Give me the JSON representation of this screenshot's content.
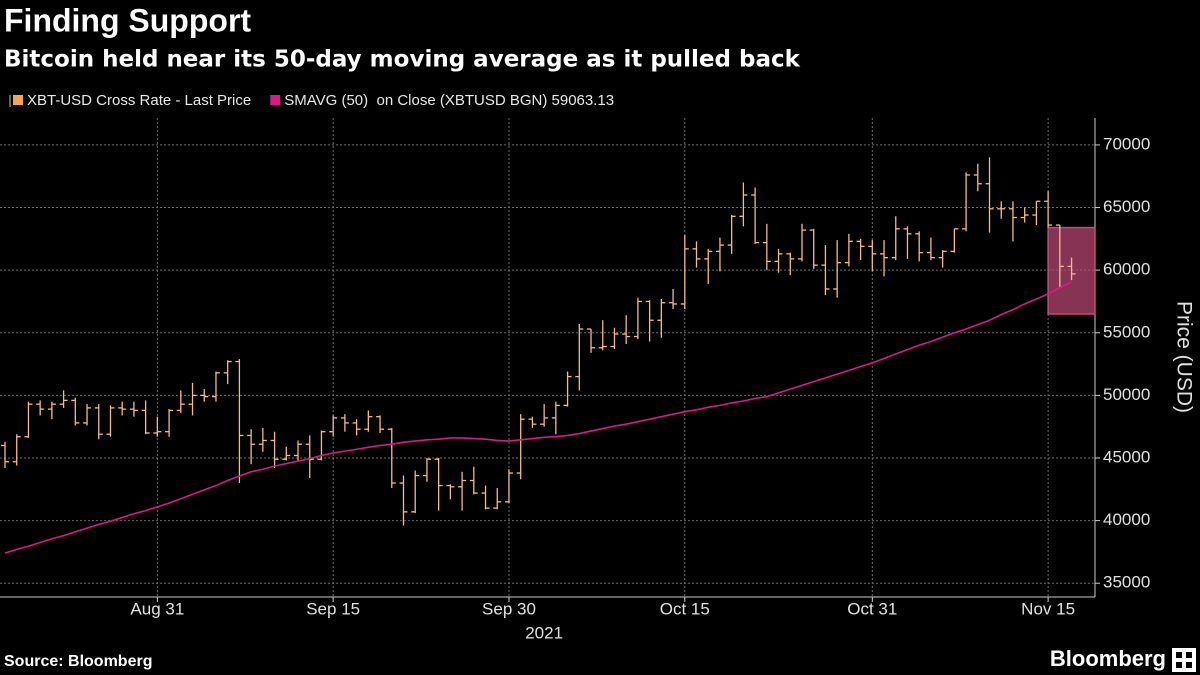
{
  "chart_data": {
    "type": "ohlc",
    "title": "Finding Support",
    "subtitle": "Bitcoin held near its 50-day moving average as it pulled back",
    "ylabel": "Price (USD)",
    "xlabel": "2021",
    "source": "Source: Bloomberg",
    "brand": "Bloomberg",
    "grid": true,
    "xlim": [
      "2021-08-18",
      "2021-11-19"
    ],
    "ylim": [
      33900,
      72150
    ],
    "yticks": [
      35000,
      40000,
      45000,
      50000,
      55000,
      60000,
      65000,
      70000
    ],
    "xticks": [
      {
        "value": "2021-08-31",
        "label": "Aug 31"
      },
      {
        "value": "2021-09-15",
        "label": "Sep 15"
      },
      {
        "value": "2021-09-30",
        "label": "Sep 30"
      },
      {
        "value": "2021-10-15",
        "label": "Oct 15"
      },
      {
        "value": "2021-10-31",
        "label": "Oct 31"
      },
      {
        "value": "2021-11-15",
        "label": "Nov 15"
      }
    ],
    "highlight": {
      "x": [
        "2021-11-15",
        "2021-11-19"
      ],
      "y": [
        56500,
        63400
      ],
      "color": "#c04a78"
    },
    "x": [
      "2021-08-18",
      "2021-08-19",
      "2021-08-20",
      "2021-08-21",
      "2021-08-22",
      "2021-08-23",
      "2021-08-24",
      "2021-08-25",
      "2021-08-26",
      "2021-08-27",
      "2021-08-28",
      "2021-08-29",
      "2021-08-30",
      "2021-08-31",
      "2021-09-01",
      "2021-09-02",
      "2021-09-03",
      "2021-09-04",
      "2021-09-05",
      "2021-09-06",
      "2021-09-07",
      "2021-09-08",
      "2021-09-09",
      "2021-09-10",
      "2021-09-11",
      "2021-09-12",
      "2021-09-13",
      "2021-09-14",
      "2021-09-15",
      "2021-09-16",
      "2021-09-17",
      "2021-09-18",
      "2021-09-19",
      "2021-09-20",
      "2021-09-21",
      "2021-09-22",
      "2021-09-23",
      "2021-09-24",
      "2021-09-25",
      "2021-09-26",
      "2021-09-27",
      "2021-09-28",
      "2021-09-29",
      "2021-09-30",
      "2021-10-01",
      "2021-10-02",
      "2021-10-03",
      "2021-10-04",
      "2021-10-05",
      "2021-10-06",
      "2021-10-07",
      "2021-10-08",
      "2021-10-09",
      "2021-10-10",
      "2021-10-11",
      "2021-10-12",
      "2021-10-13",
      "2021-10-14",
      "2021-10-15",
      "2021-10-16",
      "2021-10-17",
      "2021-10-18",
      "2021-10-19",
      "2021-10-20",
      "2021-10-21",
      "2021-10-22",
      "2021-10-23",
      "2021-10-24",
      "2021-10-25",
      "2021-10-26",
      "2021-10-27",
      "2021-10-28",
      "2021-10-29",
      "2021-10-30",
      "2021-10-31",
      "2021-11-01",
      "2021-11-02",
      "2021-11-03",
      "2021-11-04",
      "2021-11-05",
      "2021-11-06",
      "2021-11-07",
      "2021-11-08",
      "2021-11-09",
      "2021-11-10",
      "2021-11-11",
      "2021-11-12",
      "2021-11-13",
      "2021-11-14",
      "2021-11-15",
      "2021-11-16",
      "2021-11-17"
    ],
    "series": [
      {
        "name": "XBT-USD Cross Rate - Last Price",
        "color": "#f4b98c",
        "open": [
          46000,
          44700,
          46700,
          49300,
          48900,
          49300,
          49600,
          47800,
          49000,
          46900,
          49000,
          48900,
          48800,
          47000,
          47100,
          48800,
          49300,
          50000,
          49900,
          51800,
          52700,
          46800,
          46100,
          46400,
          44900,
          45200,
          46100,
          44900,
          47100,
          48200,
          47800,
          47300,
          48300,
          47300,
          43000,
          40700,
          43600,
          44900,
          42800,
          42700,
          43200,
          42200,
          41000,
          41500,
          43800,
          48100,
          47700,
          48200,
          49200,
          51500,
          55300,
          53800,
          53900,
          54900,
          54700,
          57500,
          56000,
          57400,
          57300,
          61700,
          60900,
          61500,
          62000,
          64300,
          66000,
          62200,
          60700,
          61300,
          60900,
          63200,
          60400,
          58500,
          60600,
          62300,
          61900,
          61300,
          61000,
          63300,
          62900,
          61400,
          61000,
          61500,
          63300,
          67600,
          66900,
          64900,
          64900,
          64200,
          64400,
          65500,
          63600,
          60300
        ],
        "high": [
          46300,
          46900,
          49500,
          49600,
          49500,
          50400,
          49800,
          49300,
          49300,
          49200,
          49500,
          49500,
          49600,
          48300,
          48900,
          50400,
          51000,
          50500,
          51900,
          52800,
          52900,
          47300,
          47400,
          47100,
          45900,
          46400,
          46800,
          47200,
          48400,
          48500,
          48100,
          48800,
          48400,
          47400,
          43600,
          44000,
          45000,
          45000,
          42900,
          43900,
          44300,
          42800,
          42600,
          44100,
          48500,
          48300,
          49300,
          49500,
          51900,
          55700,
          55300,
          56000,
          55400,
          56400,
          57800,
          57600,
          57700,
          58500,
          62800,
          62300,
          61700,
          62600,
          64400,
          67000,
          66600,
          63700,
          61700,
          61400,
          63700,
          63300,
          62000,
          62400,
          62900,
          62500,
          62400,
          62400,
          64300,
          63500,
          63100,
          62600,
          61600,
          63300,
          67800,
          68500,
          69000,
          65500,
          65500,
          65000,
          65500,
          66300,
          63600,
          61000
        ],
        "low": [
          44200,
          44400,
          46600,
          48400,
          48100,
          49000,
          47600,
          47600,
          46500,
          46700,
          48400,
          48300,
          46900,
          46700,
          46700,
          48600,
          48400,
          49500,
          49500,
          50900,
          43000,
          44500,
          45500,
          44200,
          44800,
          44800,
          43400,
          44800,
          46700,
          47100,
          46800,
          47100,
          47000,
          42600,
          39600,
          40600,
          43100,
          40800,
          41700,
          40800,
          42100,
          40900,
          40900,
          41400,
          43300,
          47400,
          47500,
          46900,
          49100,
          50400,
          53400,
          53600,
          53700,
          54100,
          54500,
          54300,
          54600,
          56900,
          56900,
          60200,
          58900,
          59900,
          61300,
          63500,
          62100,
          60000,
          59800,
          59600,
          60700,
          60100,
          58000,
          57800,
          60300,
          60800,
          59900,
          59500,
          60800,
          60900,
          60700,
          60800,
          60200,
          61400,
          63100,
          66300,
          63000,
          64100,
          62300,
          63800,
          63600,
          63400,
          58600,
          59200
        ],
        "close": [
          44700,
          46700,
          49300,
          48900,
          49300,
          49600,
          47800,
          49000,
          46900,
          49000,
          48900,
          48800,
          47000,
          47100,
          48800,
          49300,
          50000,
          49900,
          51800,
          52700,
          46800,
          46100,
          46400,
          44900,
          45200,
          46100,
          44900,
          47100,
          48200,
          47800,
          47300,
          48300,
          47300,
          43000,
          40700,
          43600,
          44900,
          42800,
          42700,
          43200,
          42200,
          41000,
          41500,
          43800,
          48100,
          47700,
          48200,
          49200,
          51500,
          55300,
          53800,
          53900,
          54900,
          54700,
          57500,
          56000,
          57400,
          57300,
          61700,
          60900,
          61500,
          62000,
          64300,
          66000,
          62200,
          60700,
          61300,
          60900,
          63200,
          60400,
          58500,
          60600,
          62300,
          61900,
          61300,
          61000,
          63300,
          62900,
          61400,
          61000,
          61500,
          63300,
          67600,
          66900,
          64900,
          64900,
          64200,
          64400,
          65500,
          63600,
          60300,
          59700
        ]
      },
      {
        "name": "SMAVG (50)  on Close (XBTUSD BGN) 59063.13",
        "color": "#d81b86",
        "values": [
          37400,
          37700,
          37950,
          38250,
          38550,
          38800,
          39100,
          39400,
          39700,
          39950,
          40250,
          40550,
          40800,
          41100,
          41400,
          41750,
          42100,
          42450,
          42800,
          43200,
          43550,
          43900,
          44100,
          44350,
          44550,
          44750,
          44950,
          45200,
          45400,
          45550,
          45700,
          45850,
          46000,
          46100,
          46250,
          46350,
          46450,
          46500,
          46600,
          46600,
          46550,
          46500,
          46400,
          46350,
          46450,
          46550,
          46650,
          46700,
          46800,
          46950,
          47150,
          47350,
          47550,
          47700,
          47900,
          48100,
          48300,
          48500,
          48700,
          48850,
          49050,
          49200,
          49400,
          49550,
          49750,
          49900,
          50200,
          50500,
          50800,
          51100,
          51400,
          51700,
          52000,
          52300,
          52600,
          52950,
          53300,
          53650,
          54000,
          54300,
          54650,
          55000,
          55300,
          55650,
          56000,
          56450,
          56850,
          57300,
          57700,
          58100,
          58600,
          59063.13
        ]
      }
    ]
  }
}
